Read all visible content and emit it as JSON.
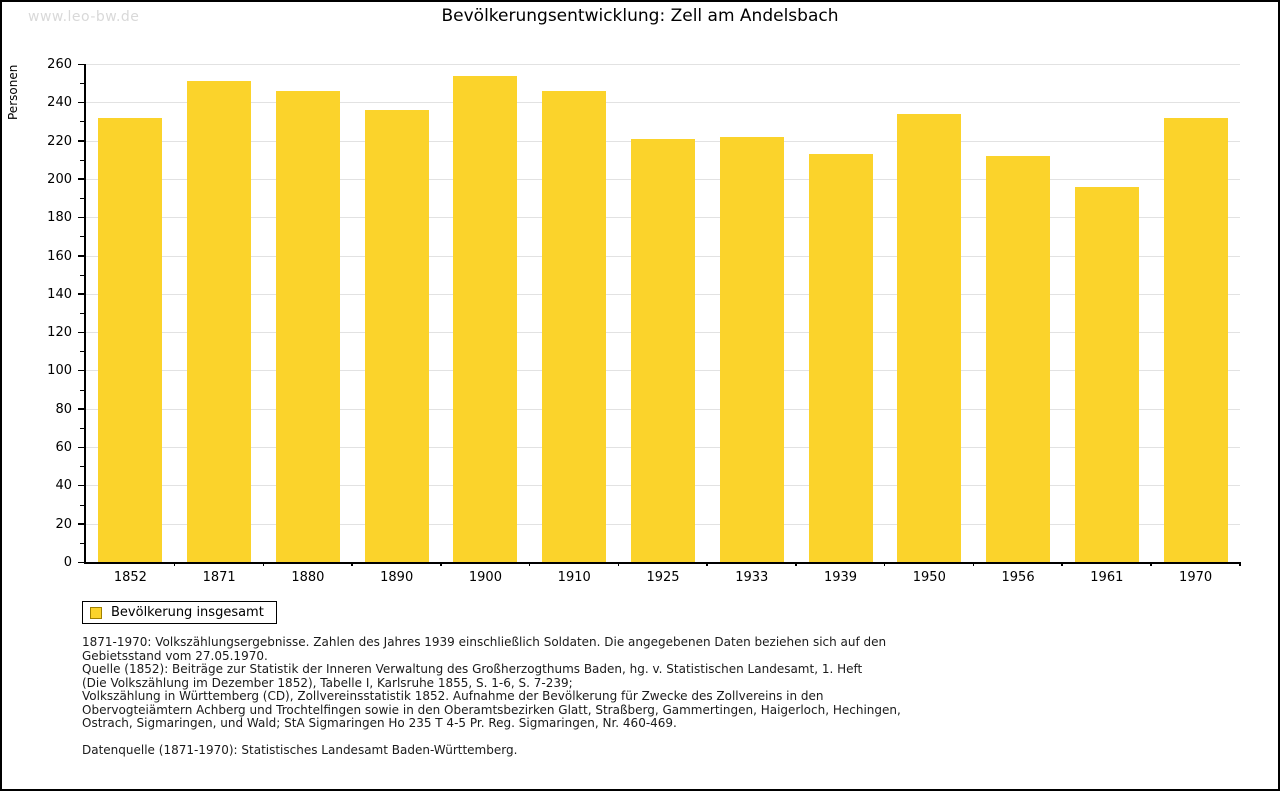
{
  "page": {
    "watermark": "www.leo-bw.de",
    "title": "Bevölkerungsentwicklung: Zell am Andelsbach"
  },
  "chart_data": {
    "type": "bar",
    "title": "Bevölkerungsentwicklung: Zell am Andelsbach",
    "xlabel": "",
    "ylabel": "Personen",
    "categories": [
      "1852",
      "1871",
      "1880",
      "1890",
      "1900",
      "1910",
      "1925",
      "1933",
      "1939",
      "1950",
      "1956",
      "1961",
      "1970"
    ],
    "series": [
      {
        "name": "Bevölkerung insgesamt",
        "values": [
          232,
          251,
          246,
          236,
          254,
          246,
          221,
          222,
          213,
          234,
          212,
          196,
          232
        ]
      }
    ],
    "ylim": [
      0,
      260
    ],
    "ytick_step": 20,
    "ytick_minor_step": 10,
    "grid": true,
    "legend_position": "bottom-left",
    "bar_color": "#fbd32b"
  },
  "legend": {
    "label": "Bevölkerung insgesamt"
  },
  "footnotes": {
    "lines": [
      "1871-1970: Volkszählungsergebnisse. Zahlen des Jahres 1939 einschließlich Soldaten. Die angegebenen Daten beziehen sich auf den",
      "Gebietsstand vom 27.05.1970.",
      "Quelle (1852): Beiträge zur Statistik der Inneren Verwaltung des Großherzogthums Baden, hg. v. Statistischen Landesamt, 1. Heft",
      "(Die Volkszählung im Dezember 1852), Tabelle I, Karlsruhe 1855, S. 1-6, S. 7-239;",
      "Volkszählung in Württemberg (CD), Zollvereinsstatistik 1852. Aufnahme der Bevölkerung für Zwecke des Zollvereins in den",
      "Obervogteiämtern Achberg und Trochtelfingen sowie in den Oberamtsbezirken Glatt, Straßberg, Gammertingen, Haigerloch, Hechingen,",
      "Ostrach, Sigmaringen, und Wald; StA Sigmaringen Ho 235 T 4-5 Pr. Reg. Sigmaringen, Nr. 460-469."
    ],
    "datasource": "Datenquelle (1871-1970): Statistisches Landesamt Baden-Württemberg."
  },
  "colors": {
    "bar": "#fbd32b",
    "gridline": "#e2e2e2",
    "axis": "#000000",
    "watermark": "#d9d9d9",
    "legend_swatch_border": "#a08000"
  }
}
